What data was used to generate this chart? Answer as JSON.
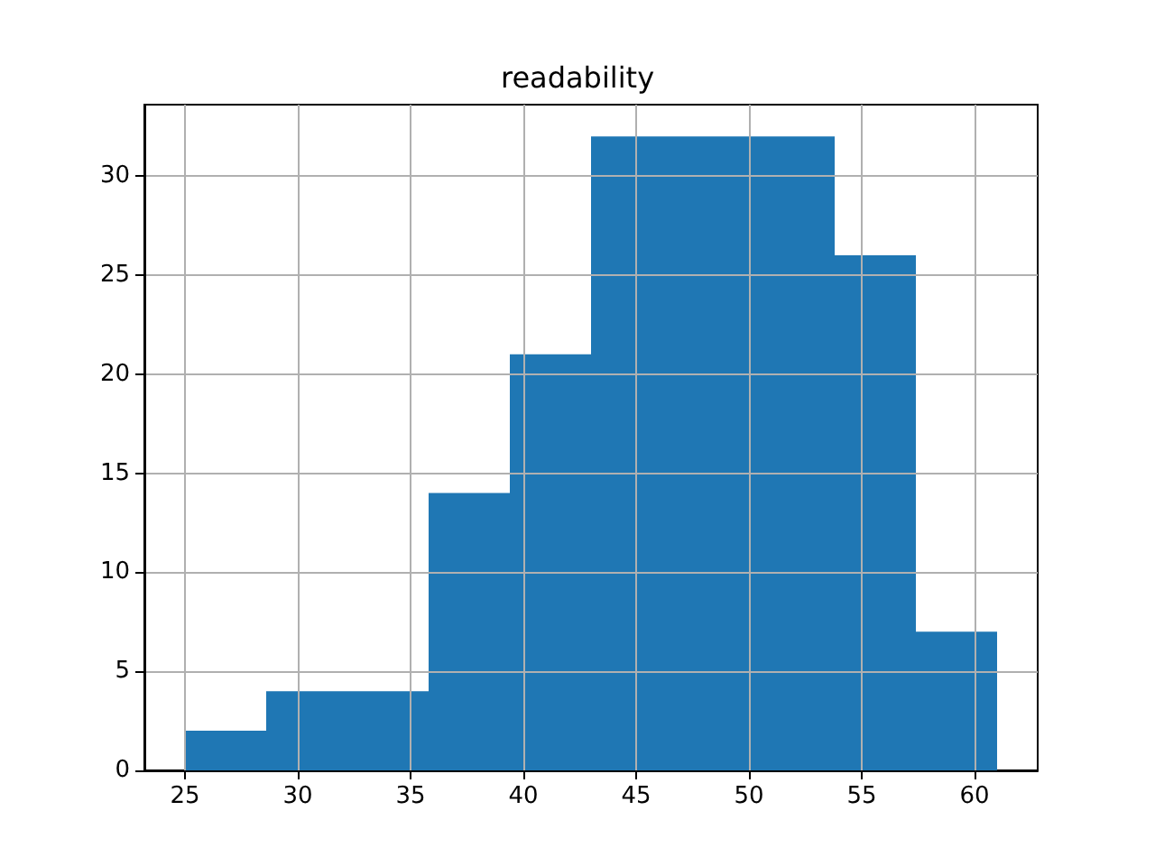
{
  "chart_data": {
    "type": "histogram",
    "title": "readability",
    "bins": [
      25,
      28.6,
      32.2,
      35.8,
      39.4,
      43,
      46.6,
      50.2,
      53.8,
      57.4,
      61
    ],
    "values": [
      2,
      4,
      4,
      14,
      21,
      32,
      32,
      32,
      26,
      7
    ],
    "color": "#1f77b4",
    "xlim": [
      23.2,
      62.8
    ],
    "xticks": [
      25,
      30,
      35,
      40,
      45,
      50,
      55,
      60
    ],
    "ylim": [
      0,
      33.6
    ],
    "yticks": [
      0,
      5,
      10,
      15,
      20,
      25,
      30
    ],
    "grid": true
  }
}
